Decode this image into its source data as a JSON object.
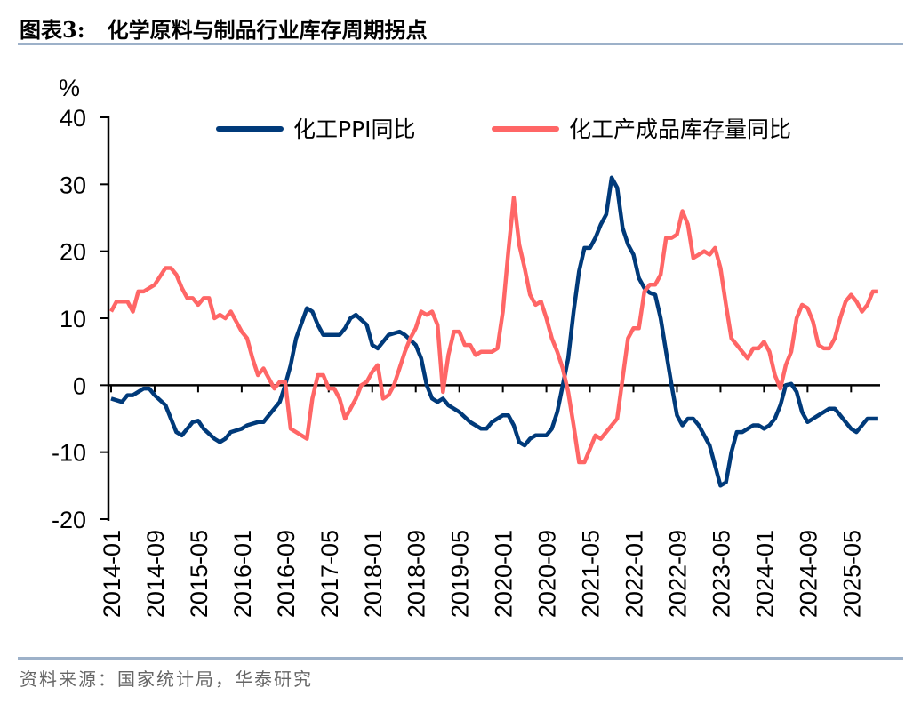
{
  "header": {
    "title": "图表3:   化学原料与制品行业库存周期拐点"
  },
  "footer": {
    "source": "资料来源：国家统计局，华泰研究"
  },
  "chart_data": {
    "type": "line",
    "title": "",
    "ylabel": "%",
    "xlabel": "",
    "ylim": [
      -20,
      40
    ],
    "yticks": [
      "40",
      "30",
      "20",
      "10",
      "0",
      "-10",
      "-20"
    ],
    "xticks": [
      "2014-01",
      "2014-09",
      "2015-05",
      "2016-01",
      "2016-09",
      "2017-05",
      "2018-01",
      "2018-09",
      "2019-05",
      "2020-01",
      "2020-09",
      "2021-05",
      "2022-01",
      "2022-09",
      "2023-05",
      "2024-01",
      "2024-09",
      "2025-05"
    ],
    "grid": false,
    "legend": "top",
    "series": [
      {
        "name": "化工PPI同比",
        "color": "#003a7a",
        "points": [
          [
            "2014-01",
            -2
          ],
          [
            "2014-03",
            -2.5
          ],
          [
            "2014-04",
            -1.5
          ],
          [
            "2014-05",
            -1.5
          ],
          [
            "2014-07",
            -0.5
          ],
          [
            "2014-08",
            -0.5
          ],
          [
            "2014-09",
            -1.5
          ],
          [
            "2014-11",
            -3
          ],
          [
            "2014-12",
            -5
          ],
          [
            "2015-01",
            -7
          ],
          [
            "2015-02",
            -7.5
          ],
          [
            "2015-03",
            -6.5
          ],
          [
            "2015-04",
            -5.5
          ],
          [
            "2015-05",
            -5.3
          ],
          [
            "2015-06",
            -6.5
          ],
          [
            "2015-08",
            -8
          ],
          [
            "2015-09",
            -8.5
          ],
          [
            "2015-10",
            -8
          ],
          [
            "2015-11",
            -7
          ],
          [
            "2016-01",
            -6.5
          ],
          [
            "2016-02",
            -6
          ],
          [
            "2016-04",
            -5.5
          ],
          [
            "2016-05",
            -5.5
          ],
          [
            "2016-06",
            -4.5
          ],
          [
            "2016-08",
            -2.5
          ],
          [
            "2016-09",
            0
          ],
          [
            "2016-10",
            3
          ],
          [
            "2016-11",
            7
          ],
          [
            "2017-01",
            11.5
          ],
          [
            "2017-02",
            11
          ],
          [
            "2017-03",
            9
          ],
          [
            "2017-04",
            7.5
          ],
          [
            "2017-06",
            7.5
          ],
          [
            "2017-07",
            7.5
          ],
          [
            "2017-08",
            8.5
          ],
          [
            "2017-09",
            10
          ],
          [
            "2017-10",
            10.5
          ],
          [
            "2017-12",
            9
          ],
          [
            "2018-01",
            6
          ],
          [
            "2018-02",
            5.5
          ],
          [
            "2018-04",
            7.5
          ],
          [
            "2018-06",
            8
          ],
          [
            "2018-07",
            7.5
          ],
          [
            "2018-09",
            6
          ],
          [
            "2018-10",
            4
          ],
          [
            "2018-11",
            0
          ],
          [
            "2018-12",
            -2
          ],
          [
            "2019-01",
            -2.5
          ],
          [
            "2019-02",
            -2
          ],
          [
            "2019-03",
            -3
          ],
          [
            "2019-05",
            -4
          ],
          [
            "2019-07",
            -5.5
          ],
          [
            "2019-09",
            -6.5
          ],
          [
            "2019-10",
            -6.5
          ],
          [
            "2019-11",
            -5.5
          ],
          [
            "2020-01",
            -4.5
          ],
          [
            "2020-02",
            -4.5
          ],
          [
            "2020-03",
            -6
          ],
          [
            "2020-04",
            -8.5
          ],
          [
            "2020-05",
            -9
          ],
          [
            "2020-06",
            -8
          ],
          [
            "2020-07",
            -7.5
          ],
          [
            "2020-09",
            -7.5
          ],
          [
            "2020-10",
            -6.5
          ],
          [
            "2020-11",
            -4
          ],
          [
            "2020-12",
            0
          ],
          [
            "2021-01",
            4
          ],
          [
            "2021-02",
            11
          ],
          [
            "2021-03",
            17
          ],
          [
            "2021-04",
            20.5
          ],
          [
            "2021-05",
            20.5
          ],
          [
            "2021-06",
            22
          ],
          [
            "2021-07",
            24
          ],
          [
            "2021-08",
            25.5
          ],
          [
            "2021-09",
            31
          ],
          [
            "2021-10",
            29.5
          ],
          [
            "2021-11",
            23.5
          ],
          [
            "2021-12",
            21
          ],
          [
            "2022-01",
            19.5
          ],
          [
            "2022-02",
            16
          ],
          [
            "2022-03",
            14.5
          ],
          [
            "2022-04",
            13.8
          ],
          [
            "2022-05",
            13.5
          ],
          [
            "2022-06",
            10
          ],
          [
            "2022-07",
            5
          ],
          [
            "2022-08",
            0
          ],
          [
            "2022-09",
            -4.5
          ],
          [
            "2022-10",
            -6
          ],
          [
            "2022-11",
            -5
          ],
          [
            "2022-12",
            -5
          ],
          [
            "2023-01",
            -6
          ],
          [
            "2023-03",
            -9
          ],
          [
            "2023-04",
            -12
          ],
          [
            "2023-05",
            -15
          ],
          [
            "2023-06",
            -14.5
          ],
          [
            "2023-07",
            -10
          ],
          [
            "2023-08",
            -7
          ],
          [
            "2023-09",
            -7
          ],
          [
            "2023-10",
            -6.5
          ],
          [
            "2023-11",
            -6
          ],
          [
            "2023-12",
            -6
          ],
          [
            "2024-01",
            -6.5
          ],
          [
            "2024-02",
            -6
          ],
          [
            "2024-03",
            -5
          ],
          [
            "2024-04",
            -3
          ],
          [
            "2024-05",
            0
          ],
          [
            "2024-06",
            0.2
          ],
          [
            "2024-07",
            -1
          ],
          [
            "2024-08",
            -4
          ],
          [
            "2024-09",
            -5.5
          ],
          [
            "2024-10",
            -5
          ],
          [
            "2024-11",
            -4.5
          ],
          [
            "2024-12",
            -4
          ],
          [
            "2025-01",
            -3.5
          ],
          [
            "2025-02",
            -3.5
          ],
          [
            "2025-03",
            -4.5
          ],
          [
            "2025-04",
            -5.5
          ],
          [
            "2025-05",
            -6.5
          ],
          [
            "2025-06",
            -7
          ],
          [
            "2025-07",
            -6
          ],
          [
            "2025-08",
            -5
          ],
          [
            "2025-09",
            -5
          ],
          [
            "2025-10",
            -5
          ]
        ]
      },
      {
        "name": "化工产成品库存量同比",
        "color": "#ff6666",
        "points": [
          [
            "2014-01",
            11
          ],
          [
            "2014-02",
            12.5
          ],
          [
            "2014-03",
            12.5
          ],
          [
            "2014-04",
            12.5
          ],
          [
            "2014-05",
            11
          ],
          [
            "2014-06",
            14
          ],
          [
            "2014-07",
            14
          ],
          [
            "2014-08",
            14.5
          ],
          [
            "2014-09",
            15
          ],
          [
            "2014-11",
            17.5
          ],
          [
            "2014-12",
            17.5
          ],
          [
            "2015-01",
            16.5
          ],
          [
            "2015-02",
            14.5
          ],
          [
            "2015-03",
            13
          ],
          [
            "2015-04",
            13
          ],
          [
            "2015-05",
            12
          ],
          [
            "2015-06",
            13
          ],
          [
            "2015-07",
            13
          ],
          [
            "2015-08",
            10
          ],
          [
            "2015-09",
            10.5
          ],
          [
            "2015-10",
            10
          ],
          [
            "2015-11",
            11
          ],
          [
            "2015-12",
            9.5
          ],
          [
            "2016-01",
            8
          ],
          [
            "2016-02",
            7
          ],
          [
            "2016-03",
            4
          ],
          [
            "2016-04",
            1.5
          ],
          [
            "2016-05",
            2.5
          ],
          [
            "2016-06",
            1
          ],
          [
            "2016-07",
            -0.5
          ],
          [
            "2016-08",
            0.5
          ],
          [
            "2016-09",
            0.5
          ],
          [
            "2016-10",
            -6.5
          ],
          [
            "2016-11",
            -7
          ],
          [
            "2016-12",
            -7.5
          ],
          [
            "2017-01",
            -8
          ],
          [
            "2017-02",
            -2
          ],
          [
            "2017-03",
            1.5
          ],
          [
            "2017-04",
            1.5
          ],
          [
            "2017-05",
            -0.5
          ],
          [
            "2017-06",
            -0.5
          ],
          [
            "2017-07",
            -2
          ],
          [
            "2017-08",
            -5
          ],
          [
            "2017-09",
            -3.5
          ],
          [
            "2017-10",
            -2
          ],
          [
            "2017-11",
            0
          ],
          [
            "2017-12",
            0.5
          ],
          [
            "2018-01",
            2
          ],
          [
            "2018-02",
            3
          ],
          [
            "2018-03",
            -2
          ],
          [
            "2018-04",
            -1.5
          ],
          [
            "2018-05",
            0
          ],
          [
            "2018-06",
            2.5
          ],
          [
            "2018-07",
            5
          ],
          [
            "2018-08",
            7
          ],
          [
            "2018-09",
            8.5
          ],
          [
            "2018-10",
            11
          ],
          [
            "2018-11",
            10.5
          ],
          [
            "2018-12",
            11
          ],
          [
            "2019-01",
            9
          ],
          [
            "2019-02",
            -1
          ],
          [
            "2019-03",
            4.5
          ],
          [
            "2019-04",
            8
          ],
          [
            "2019-05",
            8
          ],
          [
            "2019-06",
            6
          ],
          [
            "2019-07",
            6
          ],
          [
            "2019-08",
            4.5
          ],
          [
            "2019-09",
            5
          ],
          [
            "2019-10",
            5
          ],
          [
            "2019-11",
            5
          ],
          [
            "2019-12",
            5.5
          ],
          [
            "2020-01",
            11
          ],
          [
            "2020-02",
            20
          ],
          [
            "2020-03",
            28
          ],
          [
            "2020-04",
            21
          ],
          [
            "2020-05",
            17.5
          ],
          [
            "2020-06",
            13.5
          ],
          [
            "2020-07",
            12
          ],
          [
            "2020-08",
            12.5
          ],
          [
            "2020-09",
            10
          ],
          [
            "2020-10",
            7
          ],
          [
            "2020-11",
            5
          ],
          [
            "2020-12",
            2.5
          ],
          [
            "2021-01",
            -1
          ],
          [
            "2021-02",
            -6
          ],
          [
            "2021-03",
            -11.5
          ],
          [
            "2021-04",
            -11.5
          ],
          [
            "2021-05",
            -9.5
          ],
          [
            "2021-06",
            -7.5
          ],
          [
            "2021-07",
            -8
          ],
          [
            "2021-08",
            -7
          ],
          [
            "2021-09",
            -6
          ],
          [
            "2021-10",
            -5
          ],
          [
            "2021-11",
            1
          ],
          [
            "2021-12",
            7
          ],
          [
            "2022-01",
            8.5
          ],
          [
            "2022-02",
            8.5
          ],
          [
            "2022-03",
            14
          ],
          [
            "2022-04",
            15
          ],
          [
            "2022-05",
            15
          ],
          [
            "2022-06",
            16.5
          ],
          [
            "2022-07",
            22
          ],
          [
            "2022-08",
            22
          ],
          [
            "2022-09",
            22.5
          ],
          [
            "2022-10",
            26
          ],
          [
            "2022-11",
            24
          ],
          [
            "2022-12",
            19
          ],
          [
            "2023-01",
            19.5
          ],
          [
            "2023-02",
            20
          ],
          [
            "2023-03",
            19.5
          ],
          [
            "2023-04",
            20.5
          ],
          [
            "2023-05",
            17.5
          ],
          [
            "2023-06",
            12
          ],
          [
            "2023-07",
            7
          ],
          [
            "2023-08",
            6
          ],
          [
            "2023-09",
            5
          ],
          [
            "2023-10",
            4
          ],
          [
            "2023-11",
            5.5
          ],
          [
            "2023-12",
            5.5
          ],
          [
            "2024-01",
            6.5
          ],
          [
            "2024-02",
            5
          ],
          [
            "2024-03",
            1.5
          ],
          [
            "2024-04",
            -0.5
          ],
          [
            "2024-05",
            3
          ],
          [
            "2024-06",
            5
          ],
          [
            "2024-07",
            10
          ],
          [
            "2024-08",
            12
          ],
          [
            "2024-09",
            11.5
          ],
          [
            "2024-10",
            9.5
          ],
          [
            "2024-11",
            6
          ],
          [
            "2024-12",
            5.5
          ],
          [
            "2025-01",
            5.5
          ],
          [
            "2025-02",
            7
          ],
          [
            "2025-03",
            10
          ],
          [
            "2025-04",
            12.5
          ],
          [
            "2025-05",
            13.5
          ],
          [
            "2025-06",
            12.5
          ],
          [
            "2025-07",
            11
          ],
          [
            "2025-08",
            12
          ],
          [
            "2025-09",
            14
          ],
          [
            "2025-10",
            14
          ]
        ]
      }
    ]
  }
}
